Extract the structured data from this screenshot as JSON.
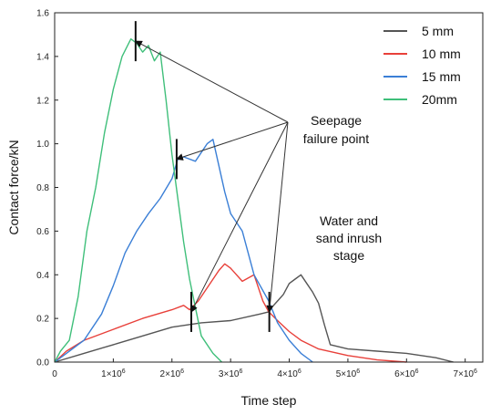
{
  "chart_data": {
    "type": "line",
    "title": "",
    "xlabel": "Time step",
    "ylabel": "Contact force/kN",
    "xlim": [
      0,
      7300000
    ],
    "ylim": [
      0,
      1.6
    ],
    "grid": false,
    "legend_position": "top-right",
    "y_ticks": [
      {
        "value": 0,
        "label": "0.0"
      },
      {
        "value": 0.2,
        "label": "0.2"
      },
      {
        "value": 0.4,
        "label": "0.4"
      },
      {
        "value": 0.6,
        "label": "0.6"
      },
      {
        "value": 0.8,
        "label": "0.8"
      },
      {
        "value": 1.0,
        "label": "1.0"
      },
      {
        "value": 1.2,
        "label": "1.2"
      },
      {
        "value": 1.4,
        "label": "1.4"
      },
      {
        "value": 1.6,
        "label": "1.6"
      }
    ],
    "x_ticks": [
      {
        "value": 0,
        "label": "0",
        "exp": ""
      },
      {
        "value": 1000000,
        "label": "1×10",
        "exp": "6"
      },
      {
        "value": 2000000,
        "label": "2×10",
        "exp": "6"
      },
      {
        "value": 3000000,
        "label": "3×10",
        "exp": "6"
      },
      {
        "value": 4000000,
        "label": "4×10",
        "exp": "6"
      },
      {
        "value": 5000000,
        "label": "5×10",
        "exp": "6"
      },
      {
        "value": 6000000,
        "label": "6×10",
        "exp": "6"
      },
      {
        "value": 7000000,
        "label": "7×10",
        "exp": "6"
      }
    ],
    "series": [
      {
        "name": "5 mm",
        "color": "#555555",
        "x": [
          0,
          500000,
          1000000,
          1500000,
          2000000,
          2500000,
          3000000,
          3500000,
          3650000,
          3700000,
          3800000,
          3900000,
          4000000,
          4100000,
          4200000,
          4300000,
          4400000,
          4500000,
          4600000,
          4700000,
          5000000,
          5500000,
          6000000,
          6500000,
          6800000
        ],
        "y": [
          0.0,
          0.04,
          0.08,
          0.12,
          0.16,
          0.18,
          0.19,
          0.22,
          0.23,
          0.25,
          0.28,
          0.31,
          0.36,
          0.38,
          0.4,
          0.36,
          0.32,
          0.27,
          0.17,
          0.08,
          0.06,
          0.05,
          0.04,
          0.02,
          0.0
        ]
      },
      {
        "name": "10 mm",
        "color": "#e8403a",
        "x": [
          0,
          200000,
          500000,
          1000000,
          1500000,
          2000000,
          2200000,
          2300000,
          2450000,
          2600000,
          2800000,
          2900000,
          3000000,
          3200000,
          3400000,
          3550000,
          3650000,
          3800000,
          4000000,
          4200000,
          4500000,
          5000000,
          5500000,
          6000000
        ],
        "y": [
          0.0,
          0.05,
          0.1,
          0.15,
          0.2,
          0.24,
          0.26,
          0.24,
          0.28,
          0.34,
          0.42,
          0.45,
          0.43,
          0.37,
          0.4,
          0.28,
          0.23,
          0.19,
          0.14,
          0.1,
          0.06,
          0.03,
          0.01,
          0.0
        ]
      },
      {
        "name": "15 mm",
        "color": "#3b7fd6",
        "x": [
          0,
          200000,
          500000,
          800000,
          1000000,
          1200000,
          1400000,
          1600000,
          1800000,
          2000000,
          2100000,
          2200000,
          2400000,
          2600000,
          2700000,
          2900000,
          3000000,
          3200000,
          3400000,
          3650000,
          3800000,
          4000000,
          4200000,
          4400000
        ],
        "y": [
          0.0,
          0.04,
          0.1,
          0.22,
          0.35,
          0.5,
          0.6,
          0.68,
          0.75,
          0.84,
          0.93,
          0.94,
          0.92,
          1.0,
          1.02,
          0.78,
          0.68,
          0.6,
          0.4,
          0.28,
          0.18,
          0.1,
          0.04,
          0.0
        ]
      },
      {
        "name": "20mm",
        "color": "#3fbf7a",
        "x": [
          0,
          100000,
          250000,
          400000,
          550000,
          700000,
          850000,
          1000000,
          1150000,
          1300000,
          1400000,
          1500000,
          1600000,
          1700000,
          1800000,
          1900000,
          2000000,
          2100000,
          2200000,
          2300000,
          2400000,
          2500000,
          2700000,
          2850000
        ],
        "y": [
          0.0,
          0.05,
          0.1,
          0.3,
          0.6,
          0.8,
          1.05,
          1.25,
          1.4,
          1.48,
          1.46,
          1.42,
          1.45,
          1.38,
          1.42,
          1.2,
          0.95,
          0.75,
          0.55,
          0.38,
          0.25,
          0.12,
          0.04,
          0.0
        ]
      }
    ],
    "annotations": {
      "seepage_label": [
        "Seepage",
        "failure point"
      ],
      "inrush_label": [
        "Water and",
        "sand inrush",
        "stage"
      ]
    },
    "seepage_points": [
      {
        "x": 1380000,
        "y": 1.47
      },
      {
        "x": 2080000,
        "y": 0.93
      },
      {
        "x": 2330000,
        "y": 0.23
      },
      {
        "x": 3660000,
        "y": 0.23
      }
    ]
  }
}
